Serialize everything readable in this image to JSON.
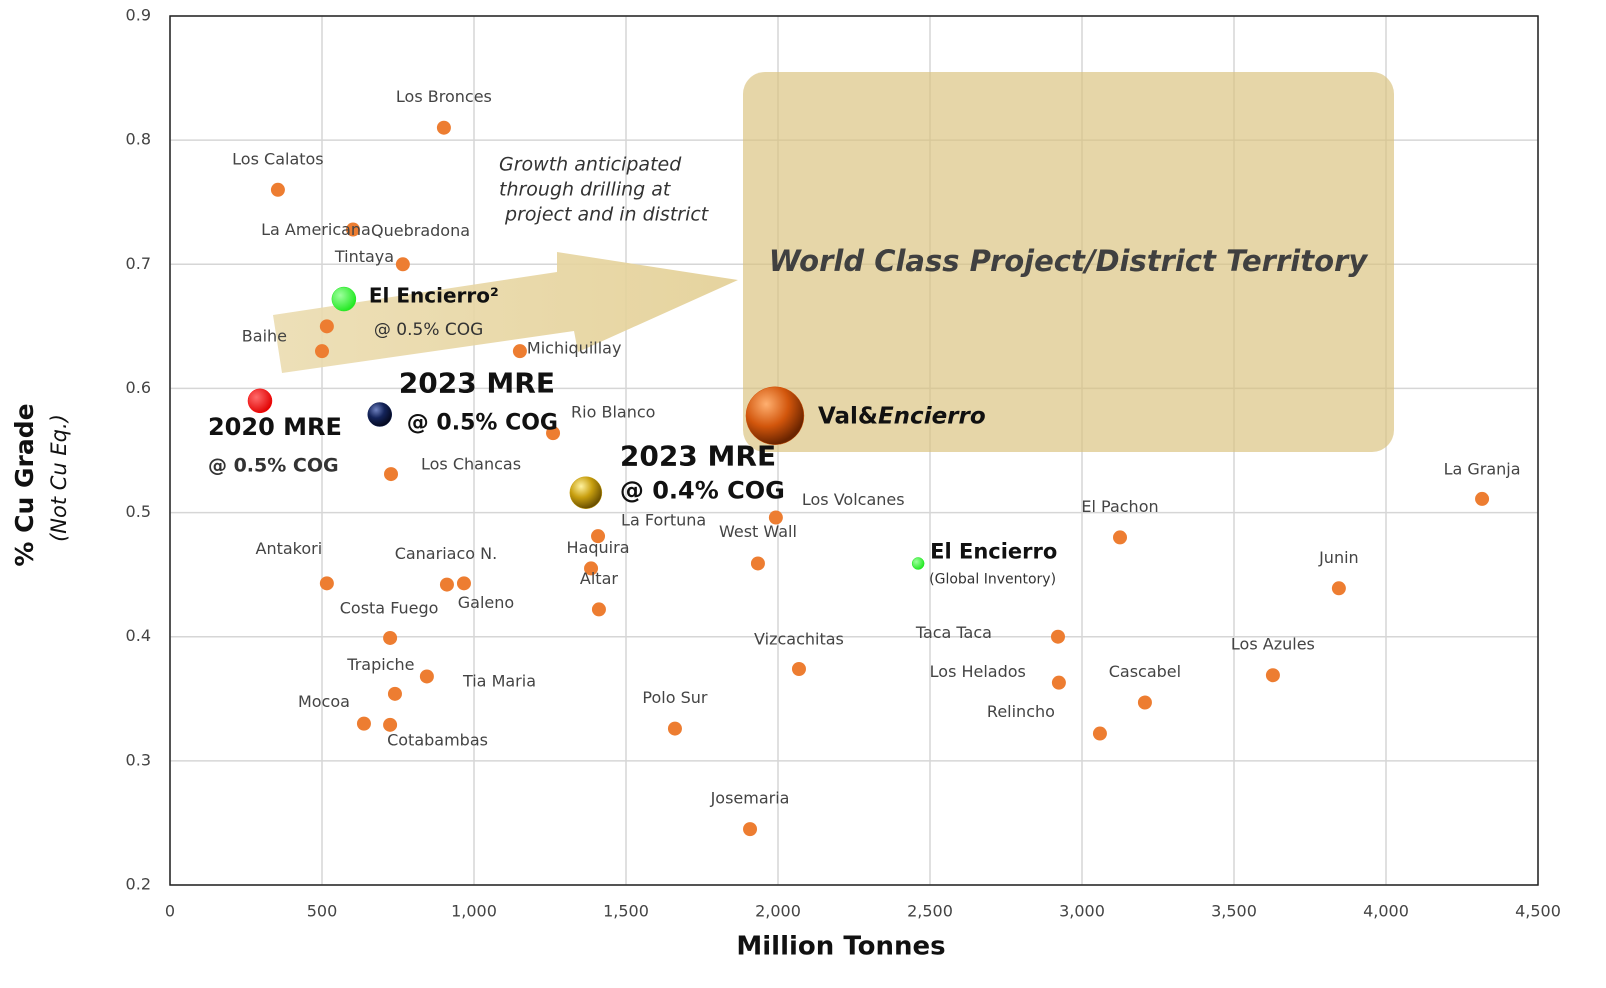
{
  "chart_data": {
    "type": "scatter",
    "xlabel": "Million Tonnes",
    "ylabel": "% Cu Grade",
    "ylabel_note": "(Not Cu Eq.)",
    "xlim": [
      0,
      4500
    ],
    "ylim": [
      0.2,
      0.9
    ],
    "xticks": [
      0,
      500,
      {
        "value": 1000,
        "label": "1,000"
      },
      {
        "value": 1500,
        "label": "1,500"
      },
      {
        "value": 2000,
        "label": "2,000"
      },
      {
        "value": 2500,
        "label": "2,500"
      },
      {
        "value": 3000,
        "label": "3,000"
      },
      {
        "value": 3500,
        "label": "3,500"
      },
      {
        "value": 4000,
        "label": "4,000"
      },
      {
        "value": 4500,
        "label": "4,500"
      }
    ],
    "yticks": [
      0.2,
      0.3,
      0.4,
      0.5,
      0.6,
      0.7,
      0.8,
      0.9
    ],
    "grid": true,
    "series": [
      {
        "color": "#ed7d31",
        "labels": [
          "Los Bronces",
          "Los Calatos",
          "Quebradona",
          "La Americana",
          "Tintaya",
          "Baihe",
          "Michiquillay",
          "Rio Blanco",
          "Los Chancas",
          "La Fortuna",
          "Los Volcanes",
          "West Wall",
          "Haquira",
          "Altar",
          "Antakori",
          "Canariaco N.",
          "Galeno",
          "Costa Fuego",
          "Trapiche",
          "Tia Maria",
          "Mocoa",
          "Cotabambas",
          "Polo Sur",
          "Josemaria",
          "Vizcachitas",
          "El Pachon",
          "Taca Taca",
          "Los Helados",
          "Relincho",
          "Cascabel",
          "Los Azules",
          "Junin",
          "La Granja"
        ],
        "x": [
          901,
          355,
          602,
          766,
          516,
          500,
          1151,
          1260,
          727,
          1408,
          1993,
          1934,
          1385,
          1411,
          516,
          911,
          967,
          724,
          845,
          740,
          638,
          724,
          1661,
          1908,
          2069,
          3125,
          2921,
          2924,
          3059,
          3207,
          3628,
          3845,
          4316
        ],
        "y": [
          0.81,
          0.76,
          0.728,
          0.7,
          0.65,
          0.63,
          0.63,
          0.564,
          0.531,
          0.481,
          0.496,
          0.459,
          0.455,
          0.422,
          0.443,
          0.442,
          0.443,
          0.399,
          0.368,
          0.354,
          0.33,
          0.329,
          0.326,
          0.245,
          0.374,
          0.48,
          0.4,
          0.363,
          0.322,
          0.347,
          0.369,
          0.439,
          0.511
        ]
      }
    ],
    "highlights": [
      {
        "labels": [
          "El Encierro²",
          "@ 0.5% COG"
        ],
        "x": 572,
        "y": 0.672,
        "color": "#1ee81e"
      },
      {
        "labels": [
          "2020 MRE",
          "@ 0.5% COG"
        ],
        "x": 296,
        "y": 0.59,
        "color": "#ff0000"
      },
      {
        "labels": [
          "2023 MRE",
          "@ 0.5% COG"
        ],
        "x": 690,
        "y": 0.579,
        "color": "#14245a"
      },
      {
        "labels": [
          "2023 MRE",
          "@ 0.4% COG"
        ],
        "x": 1368,
        "y": 0.516,
        "color": "#c9a010"
      },
      {
        "labels": [
          "Val&",
          "Encierro"
        ],
        "x": 1990,
        "y": 0.578,
        "color": "#d2560c"
      },
      {
        "labels": [
          "El Encierro",
          "(Global Inventory)"
        ],
        "x": 2461,
        "y": 0.459,
        "color": "#1ee81e"
      }
    ],
    "annotation": [
      "Growth anticipated",
      "through drilling at",
      " project and in district"
    ],
    "region_label": "World Class Project/District Territory"
  }
}
